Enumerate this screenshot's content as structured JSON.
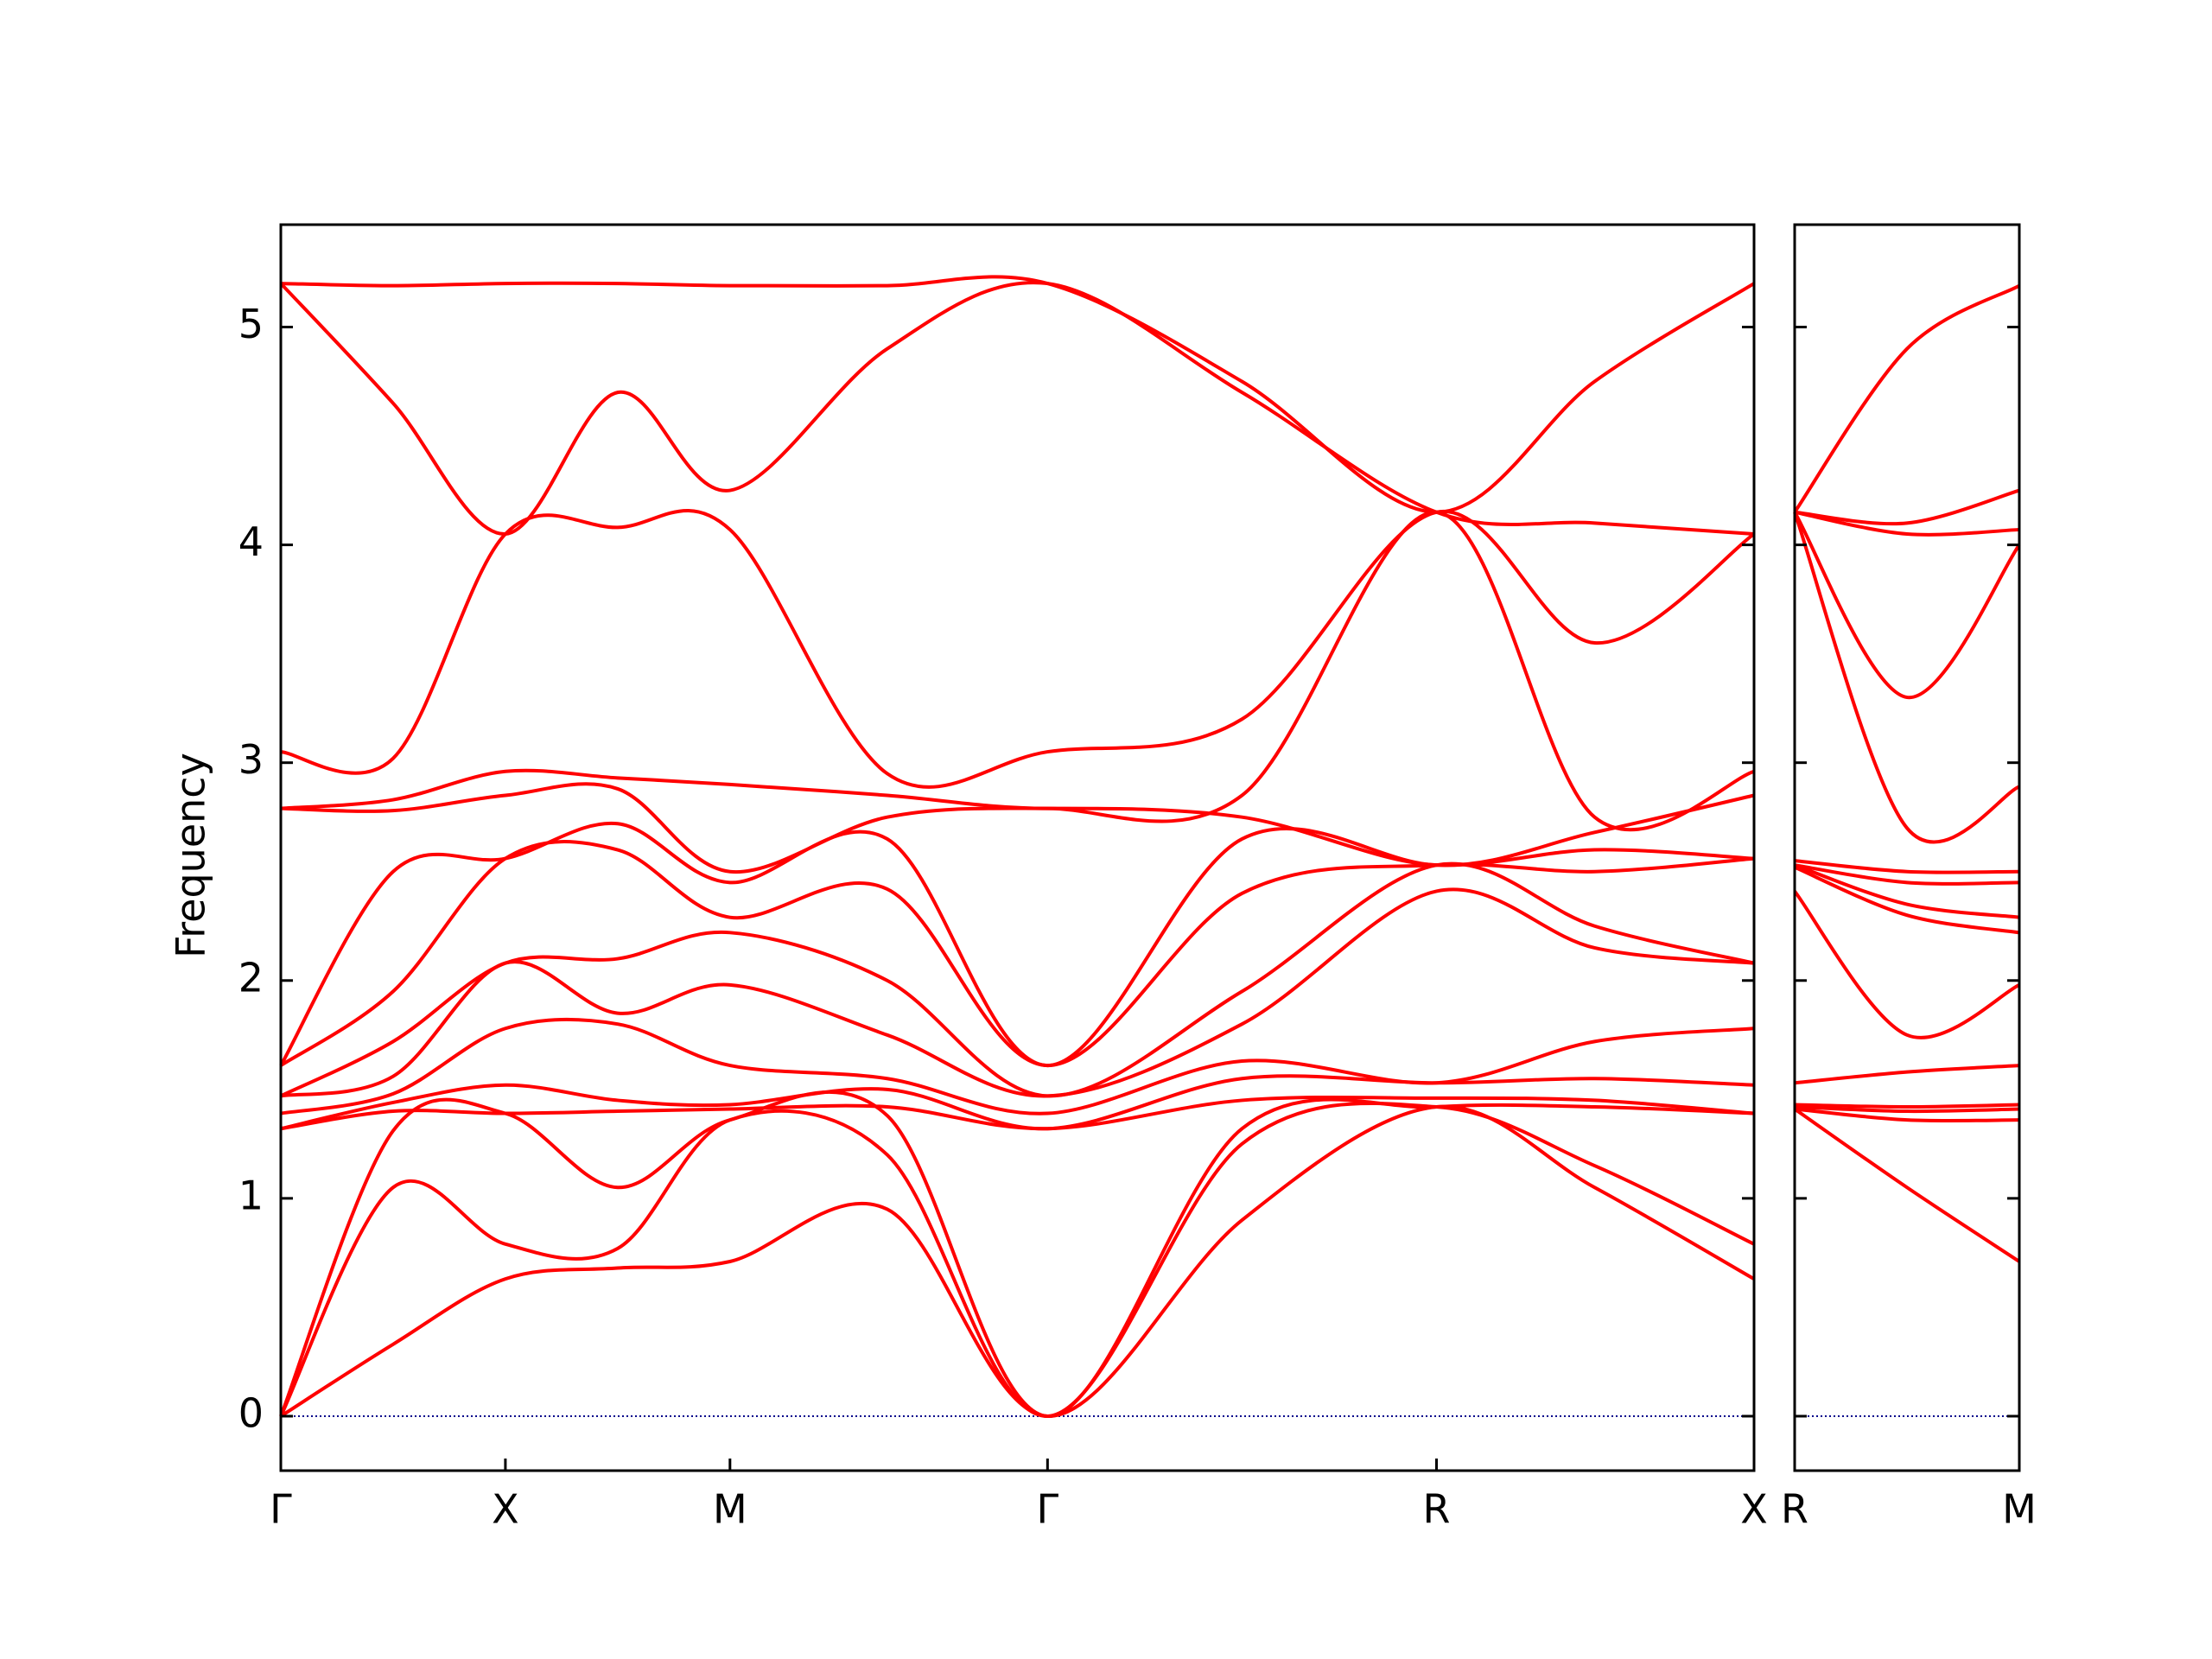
{
  "chart_data": [
    {
      "type": "line",
      "y_label": "Frequency",
      "color": "#ff0000",
      "xlim": [
        0,
        6.56
      ],
      "ylim": [
        -0.25,
        5.47
      ],
      "xticks": [
        {
          "value": 0,
          "label": "Γ"
        },
        {
          "value": 1,
          "label": "X"
        },
        {
          "value": 2,
          "label": "M"
        },
        {
          "value": 3.414,
          "label": "Γ"
        },
        {
          "value": 5.146,
          "label": "R"
        },
        {
          "value": 6.56,
          "label": "X"
        }
      ],
      "yticks": [
        0,
        1,
        2,
        3,
        4,
        5
      ],
      "reference_line": {
        "value": 0,
        "color": "#00008b"
      },
      "x": [
        0,
        0.5,
        1,
        1.5,
        2,
        2.7,
        3.414,
        4.28,
        5.146,
        5.85,
        6.56
      ],
      "series": [
        {
          "values": [
            0,
            0.33,
            0.63,
            0.68,
            0.71,
            0.95,
            0,
            0.9,
            1.42,
            1.05,
            0.63
          ]
        },
        {
          "values": [
            0,
            1.05,
            0.79,
            0.77,
            1.36,
            1.2,
            0,
            1.25,
            1.42,
            1.15,
            0.79
          ]
        },
        {
          "values": [
            0,
            1.31,
            1.39,
            1.05,
            1.36,
            1.38,
            0,
            1.32,
            1.42,
            1.42,
            1.39
          ]
        },
        {
          "values": [
            1.32,
            1.4,
            1.39,
            1.4,
            1.41,
            1.42,
            1.32,
            1.45,
            1.46,
            1.45,
            1.39
          ]
        },
        {
          "values": [
            1.32,
            1.44,
            1.52,
            1.45,
            1.43,
            1.5,
            1.32,
            1.55,
            1.53,
            1.55,
            1.52
          ]
        },
        {
          "values": [
            1.39,
            1.48,
            1.78,
            1.8,
            1.61,
            1.55,
            1.39,
            1.63,
            1.53,
            1.72,
            1.78
          ]
        },
        {
          "values": [
            1.47,
            1.56,
            2.08,
            1.85,
            1.98,
            1.75,
            1.47,
            1.8,
            2.41,
            2.15,
            2.08
          ]
        },
        {
          "values": [
            1.47,
            1.72,
            2.08,
            2.1,
            2.22,
            2.0,
            1.47,
            1.95,
            2.53,
            2.25,
            2.08
          ]
        },
        {
          "values": [
            1.61,
            1.95,
            2.56,
            2.6,
            2.29,
            2.42,
            1.61,
            2.4,
            2.53,
            2.5,
            2.56
          ]
        },
        {
          "values": [
            1.61,
            2.5,
            2.56,
            2.72,
            2.45,
            2.65,
            1.61,
            2.65,
            2.53,
            2.6,
            2.56
          ]
        },
        {
          "values": [
            2.79,
            2.78,
            2.85,
            2.88,
            2.5,
            2.75,
            2.79,
            2.75,
            2.53,
            2.68,
            2.85
          ]
        },
        {
          "values": [
            2.79,
            2.83,
            2.96,
            2.93,
            2.9,
            2.85,
            2.79,
            2.85,
            4.15,
            2.75,
            2.96
          ]
        },
        {
          "values": [
            3.05,
            3.02,
            4.05,
            4.08,
            4.07,
            2.95,
            3.05,
            3.2,
            4.15,
            3.55,
            4.05
          ]
        },
        {
          "values": [
            5.2,
            4.65,
            4.05,
            4.7,
            4.25,
            4.9,
            5.2,
            4.7,
            4.15,
            4.1,
            4.05
          ]
        },
        {
          "values": [
            5.2,
            5.19,
            5.2,
            5.2,
            5.19,
            5.19,
            5.2,
            4.75,
            4.15,
            4.75,
            5.2
          ]
        }
      ]
    },
    {
      "type": "line",
      "color": "#ff0000",
      "xlim": [
        0,
        1
      ],
      "ylim": [
        -0.25,
        5.47
      ],
      "xticks": [
        {
          "value": 0,
          "label": "R"
        },
        {
          "value": 1,
          "label": "M"
        }
      ],
      "reference_line": {
        "value": 0,
        "color": "#00008b"
      },
      "x": [
        0,
        0.5,
        1
      ],
      "series": [
        {
          "values": [
            1.41,
            1.05,
            0.71
          ]
        },
        {
          "values": [
            1.41,
            1.36,
            1.36
          ]
        },
        {
          "values": [
            1.42,
            1.4,
            1.41
          ]
        },
        {
          "values": [
            1.43,
            1.42,
            1.43
          ]
        },
        {
          "values": [
            1.53,
            1.58,
            1.61
          ]
        },
        {
          "values": [
            2.41,
            1.75,
            1.98
          ]
        },
        {
          "values": [
            2.52,
            2.3,
            2.22
          ]
        },
        {
          "values": [
            2.53,
            2.35,
            2.29
          ]
        },
        {
          "values": [
            2.53,
            2.45,
            2.45
          ]
        },
        {
          "values": [
            2.55,
            2.5,
            2.5
          ]
        },
        {
          "values": [
            4.15,
            2.7,
            2.89
          ]
        },
        {
          "values": [
            4.15,
            3.3,
            4.0
          ]
        },
        {
          "values": [
            4.15,
            4.05,
            4.07
          ]
        },
        {
          "values": [
            4.15,
            4.1,
            4.25
          ]
        },
        {
          "values": [
            4.15,
            4.9,
            5.19
          ]
        }
      ]
    }
  ]
}
